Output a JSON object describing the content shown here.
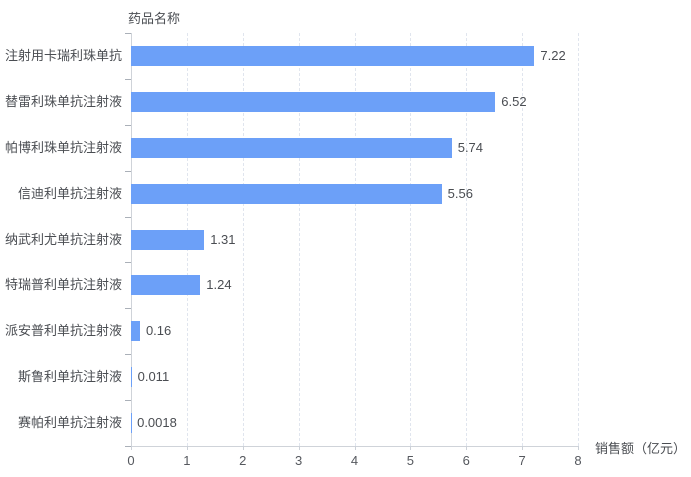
{
  "chart_data": {
    "type": "bar",
    "orientation": "horizontal",
    "title": "药品名称",
    "xlabel": "销售额（亿元）",
    "categories": [
      "注射用卡瑞利珠单抗",
      "替雷利珠单抗注射液",
      "帕博利珠单抗注射液",
      "信迪利单抗注射液",
      "纳武利尤单抗注射液",
      "特瑞普利单抗注射液",
      "派安普利单抗注射液",
      "斯鲁利单抗注射液",
      "赛帕利单抗注射液"
    ],
    "values": [
      7.22,
      6.52,
      5.74,
      5.56,
      1.31,
      1.24,
      0.16,
      0.011,
      0.0018
    ],
    "value_labels": [
      "7.22",
      "6.52",
      "5.74",
      "5.56",
      "1.31",
      "1.24",
      "0.16",
      "0.011",
      "0.0018"
    ],
    "xlim": [
      0,
      8
    ],
    "xticks": [
      0,
      1,
      2,
      3,
      4,
      5,
      6,
      7,
      8
    ],
    "xtick_labels": [
      "0",
      "1",
      "2",
      "3",
      "4",
      "5",
      "6",
      "7",
      "8"
    ],
    "grid": true,
    "gridline_style": "dashed",
    "legend_position": "none",
    "colors": {
      "bar": "#6ca0f8",
      "axis_line": "#cfd3d9",
      "gridline": "#e0e5ee",
      "text": "#4a4d52"
    }
  }
}
